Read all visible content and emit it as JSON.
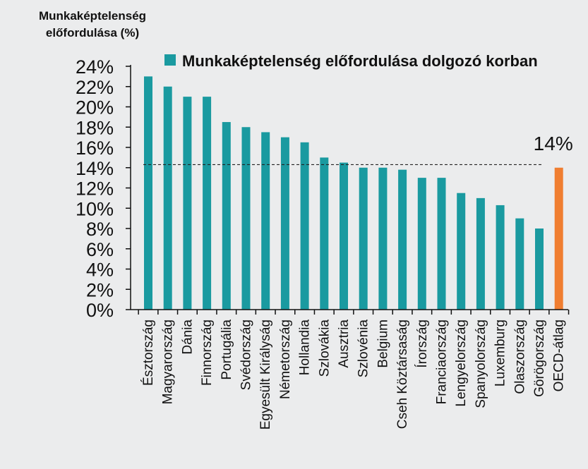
{
  "chart_data": {
    "type": "bar",
    "ylabel_lines": [
      "Munkaképtelenség",
      "előfordulása (%)"
    ],
    "ylim": [
      0,
      24
    ],
    "ytick_step": 2,
    "categories": [
      "Észtország",
      "Magyarország",
      "Dánia",
      "Finnország",
      "Portugália",
      "Svédország",
      "Egyesült Királyság",
      "Németország",
      "Hollandia",
      "Szlovákia",
      "Ausztria",
      "Szlovénia",
      "Belgium",
      "Cseh Köztársaság",
      "Írország",
      "Franciaország",
      "Lengyelország",
      "Spanyolország",
      "Luxemburg",
      "Olaszország",
      "Görögország",
      "OECD-átlag"
    ],
    "series": [
      {
        "name": "Munkaképtelenség előfordulása dolgozó korban",
        "values": [
          23,
          22,
          21,
          21,
          18.5,
          18,
          17.5,
          17,
          16.5,
          15,
          14.5,
          14,
          14,
          13.8,
          13,
          13,
          11.5,
          11,
          10.3,
          9,
          8,
          14
        ]
      }
    ],
    "highlight_category": "OECD-átlag",
    "average_line": {
      "value": 14.3,
      "label": "14%"
    },
    "grid": false,
    "legend_position": "top-right"
  },
  "colors": {
    "bar": "#1a9aa0",
    "highlight": "#f07e31",
    "background": "#ebeced",
    "axis": "#111111"
  }
}
